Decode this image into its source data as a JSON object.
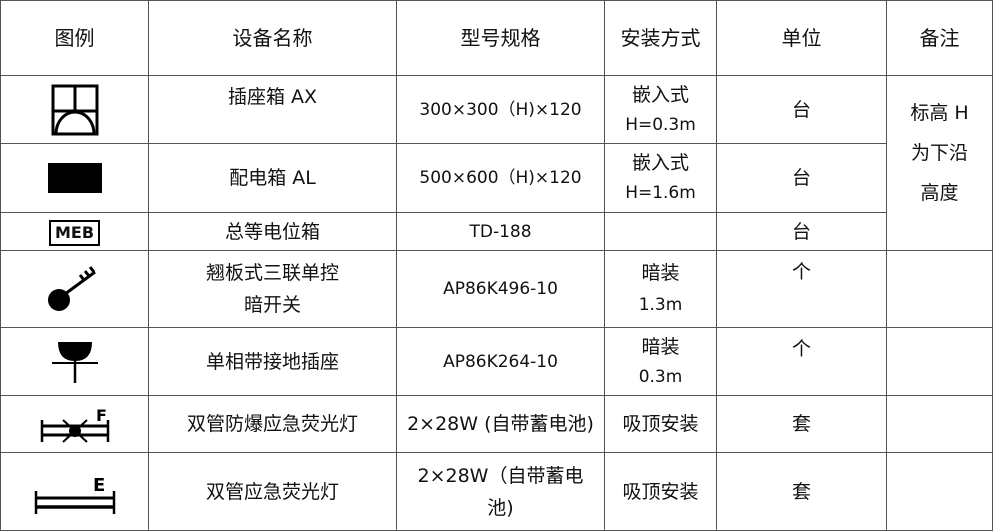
{
  "headers": [
    "图例",
    "设备名称",
    "型号规格",
    "安装方式",
    "单位",
    "备注"
  ],
  "rows": [
    {
      "icon": "socket-box-icon",
      "name": "插座箱 AX",
      "model": "300×300（H)×120",
      "install": [
        "嵌入式",
        "H=0.3m"
      ],
      "unit": "台"
    },
    {
      "icon": "distribution-box-icon",
      "name": "配电箱 AL",
      "model": "500×600（H)×120",
      "install": [
        "嵌入式",
        "H=1.6m"
      ],
      "unit": "台"
    },
    {
      "icon": "meb-box-icon",
      "icon_text": "MEB",
      "name": "总等电位箱",
      "model": "TD-188",
      "install": [],
      "unit": "台"
    },
    {
      "icon": "triple-switch-icon",
      "name": [
        "翘板式三联单控",
        "暗开关"
      ],
      "model": "AP86K496-10",
      "install": [
        "暗装",
        "1.3m"
      ],
      "unit": "个"
    },
    {
      "icon": "grounded-socket-icon",
      "name": "单相带接地插座",
      "model": "AP86K264-10",
      "install": [
        "暗装",
        "0.3m"
      ],
      "unit": "个"
    },
    {
      "icon": "explosion-proof-emergency-lamp-icon",
      "icon_text": "F",
      "name": "双管防爆应急荧光灯",
      "model": "2×28W (自带蓄电池)",
      "install": [
        "吸顶安装"
      ],
      "unit": "套"
    },
    {
      "icon": "emergency-fluorescent-lamp-icon",
      "icon_text": "E",
      "name": "双管应急荧光灯",
      "model": [
        "2×28W（自带蓄电",
        "池)"
      ],
      "install": [
        "吸顶安装"
      ],
      "unit": "套"
    }
  ],
  "remark": [
    "标高 H",
    "为下沿",
    "高度"
  ]
}
